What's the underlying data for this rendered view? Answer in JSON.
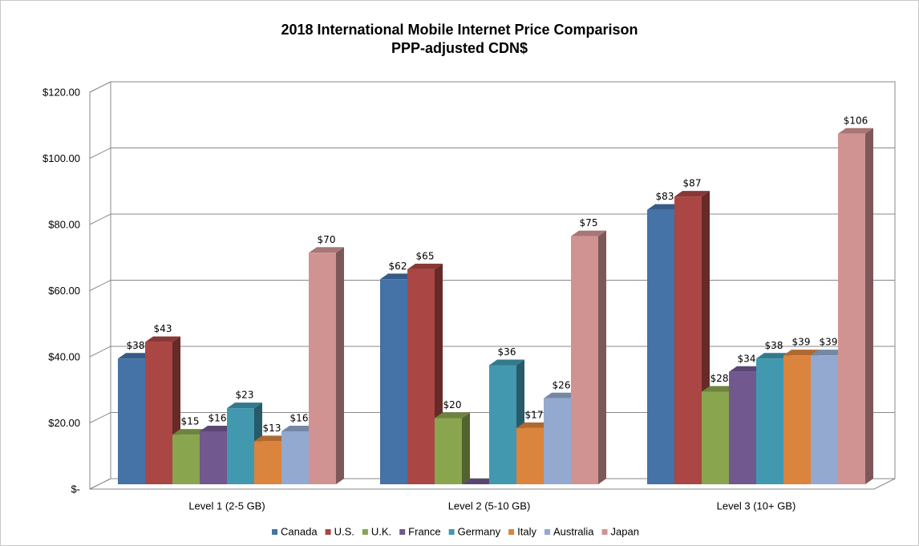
{
  "chart_data": {
    "type": "bar3d",
    "title": "2018 International Mobile Internet Price Comparison",
    "subtitle": "PPP-adjusted CDN$",
    "categories": [
      "Level 1 (2-5 GB)",
      "Level 2 (5-10 GB)",
      "Level 3 (10+ GB)"
    ],
    "ylim": [
      0,
      120
    ],
    "yticks": [
      {
        "value": 0,
        "label": "$-"
      },
      {
        "value": 20,
        "label": "$20.00"
      },
      {
        "value": 40,
        "label": "$40.00"
      },
      {
        "value": 60,
        "label": "$60.00"
      },
      {
        "value": 80,
        "label": "$80.00"
      },
      {
        "value": 100,
        "label": "$100.00"
      },
      {
        "value": 120,
        "label": "$120.00"
      }
    ],
    "grid": true,
    "legend": "bottom",
    "series": [
      {
        "name": "Canada",
        "color": "#4572a7",
        "values": [
          38,
          62,
          83
        ],
        "value_labels": [
          "$38",
          "$62",
          "$83"
        ]
      },
      {
        "name": "U.S.",
        "color": "#aa4643",
        "values": [
          43,
          65,
          87
        ],
        "value_labels": [
          "$43",
          "$65",
          "$87"
        ]
      },
      {
        "name": "U.K.",
        "color": "#89a54e",
        "values": [
          15,
          20,
          28
        ],
        "value_labels": [
          "$15",
          "$20",
          "$28"
        ]
      },
      {
        "name": "France",
        "color": "#71588f",
        "values": [
          16,
          0,
          34
        ],
        "value_labels": [
          "$16",
          null,
          "$34"
        ]
      },
      {
        "name": "Germany",
        "color": "#4198af",
        "values": [
          23,
          36,
          38
        ],
        "value_labels": [
          "$23",
          "$36",
          "$38"
        ]
      },
      {
        "name": "Italy",
        "color": "#db843d",
        "values": [
          13,
          17,
          39
        ],
        "value_labels": [
          "$13",
          "$17",
          "$39"
        ]
      },
      {
        "name": "Australia",
        "color": "#93a9cf",
        "values": [
          16,
          26,
          39
        ],
        "value_labels": [
          "$16",
          "$26",
          "$39"
        ]
      },
      {
        "name": "Japan",
        "color": "#d19392",
        "values": [
          70,
          75,
          106
        ],
        "value_labels": [
          "$70",
          "$75",
          "$106"
        ]
      }
    ]
  }
}
